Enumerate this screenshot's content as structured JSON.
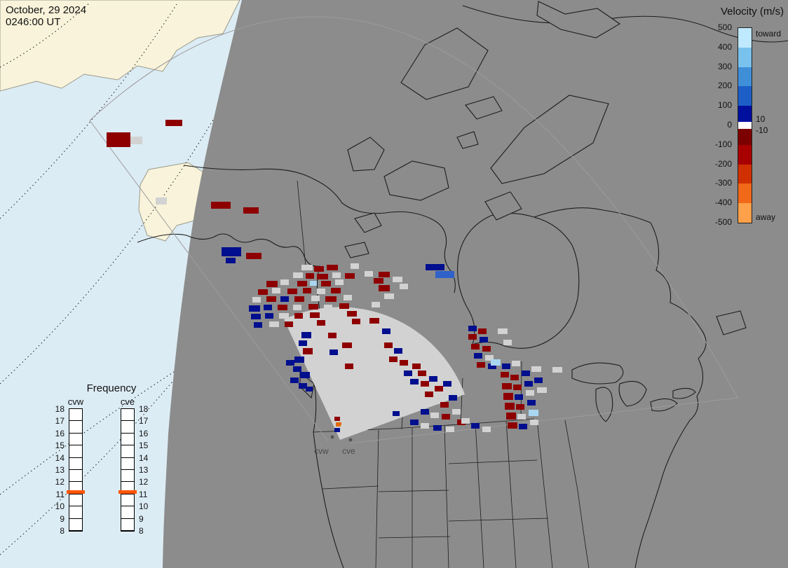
{
  "timestamp": {
    "date": "October, 29 2024",
    "time": "0246:00 UT"
  },
  "velocity_legend": {
    "title": "Velocity (m/s)",
    "toward_label": "toward",
    "away_label": "away",
    "ticks": [
      "500",
      "400",
      "300",
      "200",
      "100",
      "0",
      "-100",
      "-200",
      "-300",
      "-400",
      "-500"
    ],
    "inner_ticks": {
      "pos": "10",
      "neg": "-10"
    },
    "segments": [
      {
        "color": "#bfe9ff"
      },
      {
        "color": "#79c2ee"
      },
      {
        "color": "#3f8fd8"
      },
      {
        "color": "#1c5ec6"
      },
      {
        "color": "#000f9e"
      },
      {
        "color": "#ffffff"
      },
      {
        "color": "#7d0000"
      },
      {
        "color": "#a80000"
      },
      {
        "color": "#d03000"
      },
      {
        "color": "#f06818"
      },
      {
        "color": "#ffa04a"
      }
    ]
  },
  "frequency_panel": {
    "title": "Frequency",
    "marker_color": "#ff5500",
    "columns": [
      {
        "id": "cvw",
        "label": "cvw",
        "ticks": [
          "18",
          "17",
          "16",
          "15",
          "14",
          "13",
          "12",
          "11",
          "10",
          "9",
          "8"
        ],
        "marker_tick_index": 7
      },
      {
        "id": "cve",
        "label": "cve",
        "ticks": [
          "18",
          "17",
          "16",
          "15",
          "14",
          "13",
          "12",
          "11",
          "10",
          "9",
          "8"
        ],
        "marker_tick_index": 7
      }
    ]
  },
  "map": {
    "radar_labels": [
      {
        "text": "cvw"
      },
      {
        "text": "cve"
      }
    ],
    "colors": {
      "ocean": "#dcecf5",
      "land_day": "#f8f3da",
      "night": "#8c8c8c",
      "ground_scatter": "#d2d2d2"
    },
    "cell_colors": {
      "r": "#8e0000",
      "b": "#000f8e",
      "g": "#d2d2d2",
      "lb": "#a9d7f2",
      "mb": "#2f62c8",
      "o": "#e06a10"
    },
    "cells": [
      [
        152,
        189,
        34,
        21,
        "r"
      ],
      [
        186,
        195,
        17,
        11,
        "g"
      ],
      [
        236,
        171,
        24,
        9,
        "r"
      ],
      [
        222,
        282,
        16,
        10,
        "g"
      ],
      [
        301,
        288,
        28,
        10,
        "r"
      ],
      [
        347,
        296,
        22,
        9,
        "r"
      ],
      [
        316,
        353,
        28,
        13,
        "b"
      ],
      [
        351,
        361,
        22,
        9,
        "r"
      ],
      [
        322,
        368,
        14,
        8,
        "b"
      ],
      [
        430,
        378,
        16,
        8,
        "g"
      ],
      [
        448,
        380,
        14,
        8,
        "r"
      ],
      [
        466,
        378,
        16,
        8,
        "r"
      ],
      [
        500,
        376,
        12,
        8,
        "g"
      ],
      [
        418,
        389,
        14,
        8,
        "g"
      ],
      [
        436,
        390,
        12,
        8,
        "r"
      ],
      [
        452,
        391,
        16,
        8,
        "r"
      ],
      [
        474,
        389,
        12,
        8,
        "g"
      ],
      [
        492,
        390,
        14,
        8,
        "r"
      ],
      [
        520,
        387,
        12,
        8,
        "g"
      ],
      [
        540,
        388,
        16,
        8,
        "r"
      ],
      [
        380,
        401,
        16,
        9,
        "r"
      ],
      [
        400,
        399,
        12,
        8,
        "g"
      ],
      [
        424,
        401,
        14,
        8,
        "r"
      ],
      [
        442,
        401,
        10,
        7,
        "lb"
      ],
      [
        458,
        401,
        14,
        8,
        "r"
      ],
      [
        478,
        399,
        12,
        8,
        "g"
      ],
      [
        533,
        397,
        14,
        8,
        "r"
      ],
      [
        560,
        395,
        14,
        8,
        "g"
      ],
      [
        368,
        413,
        14,
        8,
        "r"
      ],
      [
        388,
        411,
        12,
        8,
        "g"
      ],
      [
        410,
        412,
        14,
        8,
        "r"
      ],
      [
        432,
        411,
        12,
        8,
        "r"
      ],
      [
        452,
        412,
        12,
        8,
        "g"
      ],
      [
        472,
        411,
        14,
        8,
        "r"
      ],
      [
        540,
        407,
        16,
        9,
        "r"
      ],
      [
        570,
        405,
        12,
        8,
        "g"
      ],
      [
        360,
        424,
        12,
        8,
        "g"
      ],
      [
        380,
        423,
        14,
        8,
        "r"
      ],
      [
        400,
        423,
        12,
        8,
        "b"
      ],
      [
        420,
        423,
        14,
        8,
        "r"
      ],
      [
        444,
        422,
        12,
        8,
        "g"
      ],
      [
        464,
        423,
        16,
        8,
        "r"
      ],
      [
        490,
        421,
        12,
        8,
        "g"
      ],
      [
        548,
        419,
        14,
        8,
        "g"
      ],
      [
        355,
        436,
        16,
        9,
        "b"
      ],
      [
        376,
        435,
        12,
        8,
        "b"
      ],
      [
        396,
        435,
        14,
        8,
        "r"
      ],
      [
        418,
        435,
        12,
        8,
        "g"
      ],
      [
        440,
        434,
        14,
        8,
        "r"
      ],
      [
        462,
        435,
        12,
        8,
        "g"
      ],
      [
        484,
        433,
        14,
        8,
        "r"
      ],
      [
        530,
        431,
        12,
        8,
        "g"
      ],
      [
        358,
        448,
        14,
        8,
        "b"
      ],
      [
        378,
        447,
        12,
        8,
        "b"
      ],
      [
        398,
        447,
        14,
        8,
        "g"
      ],
      [
        420,
        447,
        12,
        8,
        "r"
      ],
      [
        442,
        446,
        14,
        8,
        "r"
      ],
      [
        466,
        445,
        12,
        8,
        "g"
      ],
      [
        495,
        444,
        14,
        8,
        "r"
      ],
      [
        362,
        460,
        12,
        8,
        "b"
      ],
      [
        384,
        459,
        14,
        8,
        "g"
      ],
      [
        406,
        459,
        12,
        8,
        "r"
      ],
      [
        428,
        458,
        14,
        8,
        "g"
      ],
      [
        452,
        457,
        12,
        8,
        "r"
      ],
      [
        476,
        457,
        14,
        8,
        "g"
      ],
      [
        502,
        455,
        12,
        8,
        "r"
      ],
      [
        527,
        454,
        14,
        8,
        "r"
      ],
      [
        430,
        474,
        14,
        9,
        "b"
      ],
      [
        452,
        479,
        12,
        8,
        "g"
      ],
      [
        468,
        475,
        12,
        8,
        "r"
      ],
      [
        488,
        489,
        14,
        8,
        "r"
      ],
      [
        426,
        486,
        12,
        8,
        "b"
      ],
      [
        470,
        499,
        12,
        8,
        "b"
      ],
      [
        432,
        497,
        14,
        9,
        "r"
      ],
      [
        420,
        509,
        14,
        9,
        "b"
      ],
      [
        408,
        514,
        12,
        8,
        "b"
      ],
      [
        418,
        523,
        12,
        8,
        "b"
      ],
      [
        428,
        531,
        14,
        9,
        "b"
      ],
      [
        414,
        539,
        12,
        8,
        "b"
      ],
      [
        426,
        547,
        12,
        8,
        "b"
      ],
      [
        436,
        552,
        10,
        7,
        "b"
      ],
      [
        492,
        519,
        12,
        8,
        "r"
      ],
      [
        545,
        469,
        12,
        8,
        "b"
      ],
      [
        558,
        477,
        12,
        8,
        "g"
      ],
      [
        548,
        489,
        12,
        8,
        "r"
      ],
      [
        562,
        497,
        12,
        8,
        "b"
      ],
      [
        555,
        509,
        12,
        8,
        "r"
      ],
      [
        570,
        514,
        12,
        8,
        "r"
      ],
      [
        560,
        524,
        12,
        8,
        "g"
      ],
      [
        576,
        529,
        12,
        8,
        "b"
      ],
      [
        588,
        519,
        12,
        8,
        "r"
      ],
      [
        596,
        529,
        12,
        8,
        "r"
      ],
      [
        585,
        541,
        12,
        8,
        "b"
      ],
      [
        600,
        544,
        12,
        8,
        "r"
      ],
      [
        612,
        537,
        12,
        8,
        "b"
      ],
      [
        592,
        555,
        12,
        8,
        "g"
      ],
      [
        606,
        559,
        12,
        8,
        "r"
      ],
      [
        620,
        551,
        12,
        8,
        "r"
      ],
      [
        632,
        544,
        12,
        8,
        "b"
      ],
      [
        615,
        569,
        12,
        8,
        "g"
      ],
      [
        628,
        574,
        12,
        8,
        "r"
      ],
      [
        640,
        564,
        12,
        8,
        "b"
      ],
      [
        600,
        584,
        12,
        8,
        "b"
      ],
      [
        614,
        589,
        12,
        8,
        "g"
      ],
      [
        630,
        591,
        12,
        8,
        "r"
      ],
      [
        645,
        584,
        12,
        8,
        "g"
      ],
      [
        585,
        599,
        12,
        8,
        "b"
      ],
      [
        600,
        604,
        12,
        8,
        "g"
      ],
      [
        618,
        607,
        12,
        8,
        "b"
      ],
      [
        636,
        609,
        12,
        8,
        "g"
      ],
      [
        652,
        599,
        12,
        8,
        "r"
      ],
      [
        560,
        587,
        10,
        7,
        "b"
      ],
      [
        607,
        377,
        27,
        9,
        "b"
      ],
      [
        621,
        387,
        27,
        10,
        "mb"
      ],
      [
        668,
        465,
        12,
        8,
        "b"
      ],
      [
        682,
        469,
        12,
        8,
        "r"
      ],
      [
        668,
        477,
        12,
        8,
        "r"
      ],
      [
        684,
        481,
        12,
        8,
        "b"
      ],
      [
        672,
        491,
        12,
        8,
        "r"
      ],
      [
        688,
        494,
        12,
        8,
        "r"
      ],
      [
        676,
        504,
        12,
        8,
        "b"
      ],
      [
        692,
        507,
        12,
        8,
        "g"
      ],
      [
        680,
        517,
        12,
        8,
        "r"
      ],
      [
        696,
        519,
        12,
        8,
        "b"
      ],
      [
        710,
        469,
        14,
        8,
        "g"
      ],
      [
        718,
        485,
        12,
        8,
        "g"
      ],
      [
        700,
        513,
        14,
        9,
        "lb"
      ],
      [
        716,
        519,
        12,
        8,
        "b"
      ],
      [
        730,
        515,
        12,
        8,
        "g"
      ],
      [
        714,
        531,
        12,
        8,
        "r"
      ],
      [
        728,
        535,
        12,
        8,
        "r"
      ],
      [
        744,
        529,
        12,
        8,
        "b"
      ],
      [
        758,
        523,
        14,
        8,
        "g"
      ],
      [
        716,
        547,
        14,
        9,
        "r"
      ],
      [
        732,
        549,
        12,
        8,
        "r"
      ],
      [
        748,
        544,
        12,
        8,
        "b"
      ],
      [
        762,
        539,
        12,
        8,
        "b"
      ],
      [
        718,
        561,
        14,
        10,
        "r"
      ],
      [
        734,
        563,
        12,
        8,
        "b"
      ],
      [
        750,
        557,
        12,
        8,
        "g"
      ],
      [
        766,
        553,
        14,
        8,
        "g"
      ],
      [
        720,
        575,
        14,
        10,
        "r"
      ],
      [
        736,
        577,
        12,
        8,
        "r"
      ],
      [
        752,
        571,
        12,
        8,
        "b"
      ],
      [
        722,
        589,
        14,
        10,
        "r"
      ],
      [
        738,
        591,
        12,
        8,
        "g"
      ],
      [
        754,
        585,
        14,
        9,
        "lb"
      ],
      [
        724,
        603,
        14,
        9,
        "r"
      ],
      [
        740,
        605,
        12,
        8,
        "b"
      ],
      [
        756,
        599,
        12,
        8,
        "g"
      ],
      [
        658,
        597,
        12,
        8,
        "g"
      ],
      [
        672,
        604,
        12,
        8,
        "b"
      ],
      [
        688,
        609,
        12,
        8,
        "g"
      ],
      [
        788,
        524,
        14,
        8,
        "g"
      ],
      [
        477,
        595,
        8,
        6,
        "r"
      ],
      [
        479,
        603,
        8,
        6,
        "o"
      ],
      [
        477,
        611,
        8,
        6,
        "b"
      ],
      [
        486,
        607,
        8,
        6,
        "g"
      ]
    ]
  }
}
